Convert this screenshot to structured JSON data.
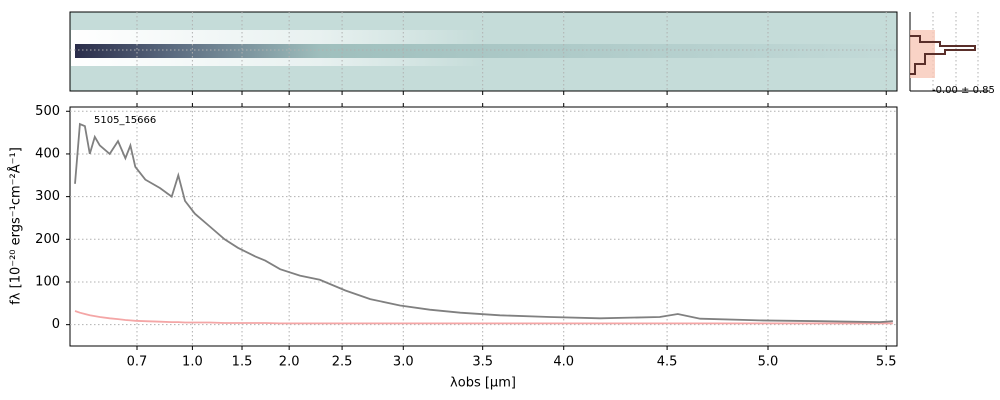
{
  "chart_data": {
    "type": "line",
    "annotation": "5105_15666",
    "side_label": "-0.00 ± 0.85",
    "xlabel": "λobs [μm]",
    "ylabel": "fλ [10⁻²⁰ ergs⁻¹cm⁻²Å⁻¹]",
    "xlim": [
      0,
      100
    ],
    "ylim": [
      -50,
      510
    ],
    "xticks": [
      {
        "value": 8.1,
        "label": "0.7"
      },
      {
        "value": 14.8,
        "label": "1.0"
      },
      {
        "value": 20.8,
        "label": "1.5"
      },
      {
        "value": 26.5,
        "label": "2.0"
      },
      {
        "value": 32.9,
        "label": "2.5"
      },
      {
        "value": 40.3,
        "label": "3.0"
      },
      {
        "value": 49.9,
        "label": "3.5"
      },
      {
        "value": 59.7,
        "label": "4.0"
      },
      {
        "value": 72.2,
        "label": "4.5"
      },
      {
        "value": 84.4,
        "label": "5.0"
      },
      {
        "value": 98.7,
        "label": "5.5"
      }
    ],
    "yticks": [
      0,
      100,
      200,
      300,
      400,
      500
    ],
    "grid": true,
    "x": [
      0.6,
      1.2,
      1.8,
      2.4,
      3.0,
      3.6,
      4.8,
      5.8,
      6.7,
      7.3,
      7.9,
      9.1,
      10.9,
      12.3,
      13.1,
      13.9,
      15.1,
      16.9,
      18.7,
      20.3,
      22.4,
      23.6,
      25.4,
      27.8,
      30.2,
      33.3,
      36.3,
      39.9,
      43.5,
      47.2,
      52.0,
      58.0,
      64.1,
      71.3,
      73.5,
      76.2,
      83.4,
      90.7,
      97.9,
      99.5
    ],
    "series": [
      {
        "color": "#808080",
        "values": [
          330,
          470,
          465,
          400,
          440,
          420,
          400,
          430,
          390,
          420,
          370,
          340,
          320,
          300,
          350,
          290,
          260,
          230,
          200,
          180,
          160,
          150,
          130,
          115,
          105,
          80,
          60,
          45,
          35,
          28,
          22,
          18,
          15,
          18,
          25,
          14,
          10,
          8,
          6,
          8
        ]
      },
      {
        "color": "#f4a6a6",
        "values": [
          32,
          28,
          25,
          22,
          20,
          18,
          15,
          13,
          11,
          10,
          9,
          8,
          7,
          6,
          6,
          5,
          5,
          5,
          4,
          4,
          4,
          4,
          3,
          3,
          3,
          3,
          3,
          3,
          3,
          3,
          3,
          3,
          3,
          3,
          3,
          3,
          3,
          3,
          3,
          3
        ]
      }
    ]
  }
}
